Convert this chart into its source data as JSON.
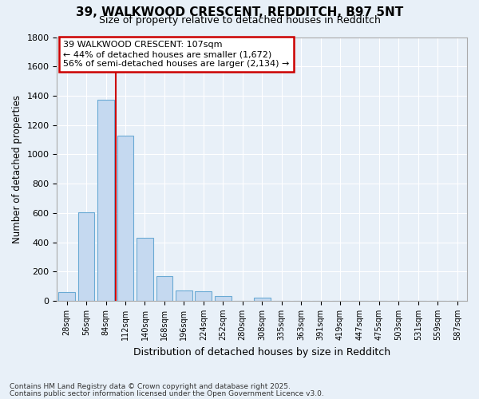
{
  "title_line1": "39, WALKWOOD CRESCENT, REDDITCH, B97 5NT",
  "title_line2": "Size of property relative to detached houses in Redditch",
  "xlabel": "Distribution of detached houses by size in Redditch",
  "ylabel": "Number of detached properties",
  "bar_color": "#c5d9f0",
  "bar_edge_color": "#6aaad4",
  "background_color": "#e8f0f8",
  "plot_bg_color": "#e8f0f8",
  "grid_color": "#ffffff",
  "categories": [
    "28sqm",
    "56sqm",
    "84sqm",
    "112sqm",
    "140sqm",
    "168sqm",
    "196sqm",
    "224sqm",
    "252sqm",
    "280sqm",
    "308sqm",
    "335sqm",
    "363sqm",
    "391sqm",
    "419sqm",
    "447sqm",
    "475sqm",
    "503sqm",
    "531sqm",
    "559sqm",
    "587sqm"
  ],
  "values": [
    60,
    605,
    1370,
    1125,
    430,
    170,
    70,
    65,
    35,
    0,
    20,
    0,
    0,
    0,
    0,
    0,
    0,
    0,
    0,
    0,
    0
  ],
  "ylim": [
    0,
    1800
  ],
  "yticks": [
    0,
    200,
    400,
    600,
    800,
    1000,
    1200,
    1400,
    1600,
    1800
  ],
  "vline_x": 2.5,
  "annotation_text": "39 WALKWOOD CRESCENT: 107sqm\n← 44% of detached houses are smaller (1,672)\n56% of semi-detached houses are larger (2,134) →",
  "annotation_box_color": "#ffffff",
  "annotation_box_edge_color": "#cc0000",
  "vline_color": "#cc0000",
  "footer_line1": "Contains HM Land Registry data © Crown copyright and database right 2025.",
  "footer_line2": "Contains public sector information licensed under the Open Government Licence v3.0."
}
